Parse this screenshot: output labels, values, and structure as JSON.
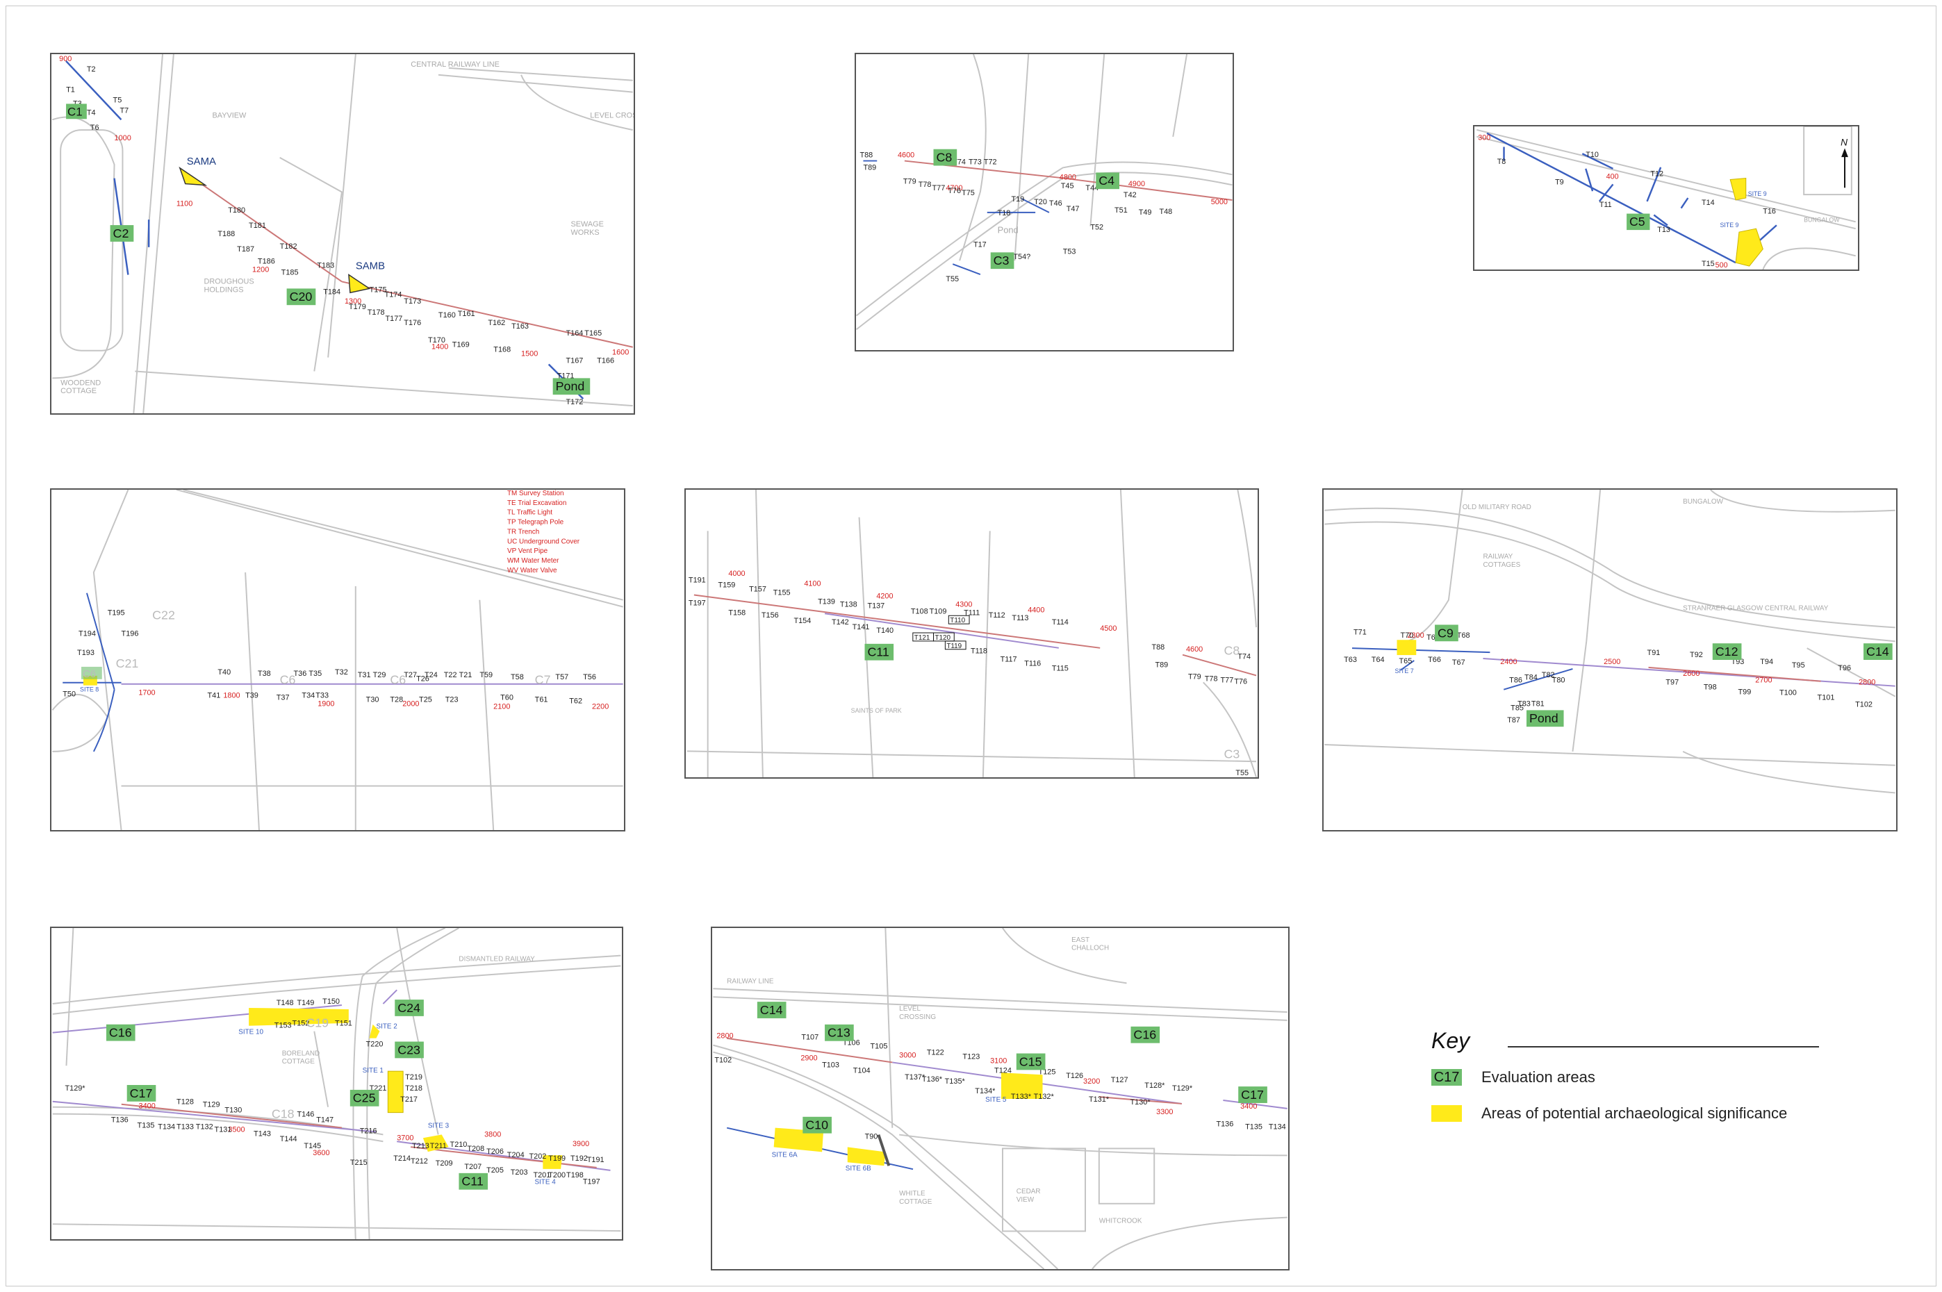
{
  "colors": {
    "evaluation_area": "#6dbd6d",
    "archaeology": "#ffea1a",
    "red_label": "#d62020",
    "blue_line": "#3a5fbf",
    "map_line": "#b5b5b5"
  },
  "legend": {
    "title": "Key",
    "items": [
      {
        "swatch": "C17",
        "label": "Evaluation areas"
      },
      {
        "swatch": "",
        "label": "Areas of potential archaeological significance"
      }
    ]
  },
  "north_arrow": {
    "label": "N"
  },
  "panels": [
    {
      "name": "panel-c1-c2-c20",
      "areas": [
        "C1",
        "C2",
        "C20",
        "Pond"
      ],
      "sites": [
        "SAMA",
        "SAMB"
      ],
      "chainage": [
        "900",
        "1000",
        "1100",
        "1200",
        "1300",
        "1400",
        "1500",
        "1600"
      ],
      "trenches": [
        "T1",
        "T2",
        "T3",
        "T4",
        "T5",
        "T6",
        "T7",
        "T180",
        "T181",
        "T182",
        "T183",
        "T184",
        "T185",
        "T186",
        "T187",
        "T188",
        "T173",
        "T174",
        "T175",
        "T176",
        "T177",
        "T178",
        "T179",
        "T160",
        "T161",
        "T162",
        "T163",
        "T164",
        "T165",
        "T166",
        "T167",
        "T168",
        "T169",
        "T170",
        "T171",
        "T172"
      ],
      "places": [
        "BAYVIEW",
        "SEWAGE WORKS",
        "DROUGHOUS HOLDINGS",
        "WOODEND COTTAGE",
        "LEVEL CROSSING",
        "CENTRAL RAILWAY LINE"
      ]
    },
    {
      "name": "panel-c3-c4-c8",
      "areas": [
        "C8",
        "C4",
        "C3"
      ],
      "sites": [],
      "chainage": [
        "4600",
        "4700",
        "4800",
        "4900",
        "5000"
      ],
      "trenches": [
        "T88",
        "T89",
        "T79",
        "T78",
        "T77",
        "T76",
        "T75",
        "T74",
        "T73",
        "T72",
        "T45",
        "T44",
        "T43",
        "T42",
        "T46",
        "T47",
        "T48",
        "T49",
        "T51",
        "T52",
        "T53",
        "T54?",
        "T55",
        "T17",
        "T18",
        "T19",
        "T20"
      ],
      "places": [
        "Pond"
      ]
    },
    {
      "name": "panel-c5",
      "areas": [
        "C5"
      ],
      "sites": [
        "SITE 9",
        "SITE 9"
      ],
      "chainage": [
        "300",
        "400",
        "500"
      ],
      "trenches": [
        "T8",
        "T9",
        "T10",
        "T11",
        "T12",
        "T13",
        "T14",
        "T15",
        "T16"
      ],
      "places": [
        "BUNGALOW"
      ]
    },
    {
      "name": "panel-c6-c7",
      "areas": [
        "C6",
        "C7",
        "C21",
        "C22"
      ],
      "sites": [
        "SITE 8"
      ],
      "chainage": [
        "1700",
        "1800",
        "1900",
        "2000",
        "2100",
        "2200"
      ],
      "trenches": [
        "T195",
        "T194",
        "T196",
        "T193",
        "T50",
        "T40",
        "T41",
        "T38",
        "T39",
        "T36",
        "T35",
        "T37",
        "T34",
        "T33",
        "T32",
        "T31",
        "T29",
        "T30",
        "T28",
        "T27",
        "T24",
        "T26",
        "T25",
        "T22",
        "T21",
        "T23",
        "T59",
        "T60",
        "T58",
        "T57",
        "T56",
        "T61",
        "T62"
      ],
      "abbreviations": [
        "TM  Survey Station",
        "TE  Trial Excavation",
        "TL  Traffic Light",
        "TP  Telegraph Pole",
        "TR  Trench",
        "UC  Underground Cover",
        "VP  Vent Pipe",
        "WM  Water Meter",
        "WV  Water Valve"
      ]
    },
    {
      "name": "panel-c11-north",
      "areas": [
        "C11"
      ],
      "sites": [],
      "chainage": [
        "4000",
        "4100",
        "4200",
        "4300",
        "4400",
        "4500",
        "4600"
      ],
      "trenches": [
        "T191",
        "T197",
        "T159",
        "T158",
        "T157",
        "T156",
        "T155",
        "T154",
        "T139",
        "T138",
        "T137",
        "T142",
        "T141",
        "T140",
        "T108",
        "T109",
        "T110",
        "T111",
        "T112",
        "T113",
        "T114",
        "T115",
        "T116",
        "T117",
        "T118",
        "T119",
        "T120",
        "T121",
        "T88",
        "T89",
        "T74",
        "T76",
        "T77",
        "T78",
        "T79",
        "T55"
      ],
      "places": [
        "C8",
        "C3"
      ]
    },
    {
      "name": "panel-c9-c12-c14",
      "areas": [
        "C9",
        "C12",
        "C14",
        "Pond"
      ],
      "sites": [
        "SITE 7"
      ],
      "chainage": [
        "2300",
        "2400",
        "2500",
        "2600",
        "2700",
        "2800"
      ],
      "trenches": [
        "T71",
        "T70",
        "T69",
        "T68",
        "T63",
        "T64",
        "T65",
        "T66",
        "T67",
        "T80",
        "T81",
        "T82",
        "T83",
        "T84",
        "T85",
        "T86",
        "T87",
        "T91",
        "T92",
        "T93",
        "T94",
        "T95",
        "T96",
        "T97",
        "T98",
        "T99",
        "T100",
        "T101",
        "T102"
      ],
      "places": [
        "OLD MILITARY ROAD",
        "RAILWAY COTTAGES",
        "STRANRAER GLASGOW CENTRAL RAILWAY",
        "BUNGALOW"
      ]
    },
    {
      "name": "panel-c16-c17-c23-c24",
      "areas": [
        "C16",
        "C17",
        "C19",
        "C23",
        "C24",
        "C25",
        "C11",
        "C18"
      ],
      "sites": [
        "SITE 10",
        "SITE 2",
        "SITE 1",
        "SITE 3",
        "SITE 4"
      ],
      "chainage": [
        "3400",
        "3500",
        "3600",
        "3700",
        "3800",
        "3900"
      ],
      "trenches": [
        "T129",
        "T136",
        "T135",
        "T134",
        "T133",
        "T132",
        "T131",
        "T130",
        "T128",
        "T129",
        "T143",
        "T144",
        "T145",
        "T146",
        "T147",
        "T148",
        "T149",
        "T150",
        "T151",
        "T152",
        "T153",
        "T220",
        "T221",
        "T219",
        "T218",
        "T217",
        "T216",
        "T215",
        "T214",
        "T213",
        "T212",
        "T211",
        "T210",
        "T209",
        "T208",
        "T207",
        "T206",
        "T205",
        "T204",
        "T203",
        "T202",
        "T201",
        "T200",
        "T199",
        "T198",
        "T192",
        "T191",
        "T197"
      ],
      "places": [
        "DISMANTLED RAILWAY",
        "BORELAND COTTAGE"
      ]
    },
    {
      "name": "panel-c10-c13-c15",
      "areas": [
        "C14",
        "C13",
        "C10",
        "C15",
        "C16",
        "C17"
      ],
      "sites": [
        "SITE 6A",
        "SITE 6B",
        "SITE 5"
      ],
      "chainage": [
        "2800",
        "2900",
        "3000",
        "3100",
        "3200",
        "3300",
        "3400"
      ],
      "trenches": [
        "T102",
        "T107",
        "T106",
        "T105",
        "T103",
        "T104",
        "T122",
        "T123",
        "T124",
        "T125",
        "T126",
        "T127",
        "T128",
        "T129",
        "T130",
        "T131",
        "T132",
        "T133",
        "T134",
        "T135",
        "T136",
        "T137",
        "T90",
        "T136",
        "T135",
        "T134"
      ],
      "places": [
        "EAST CHALLOCH",
        "RAILWAY LINE",
        "LEVEL CROSSING",
        "CEDAR VIEW",
        "WHITLE COTTAGE",
        "WHITCROOK"
      ]
    }
  ]
}
